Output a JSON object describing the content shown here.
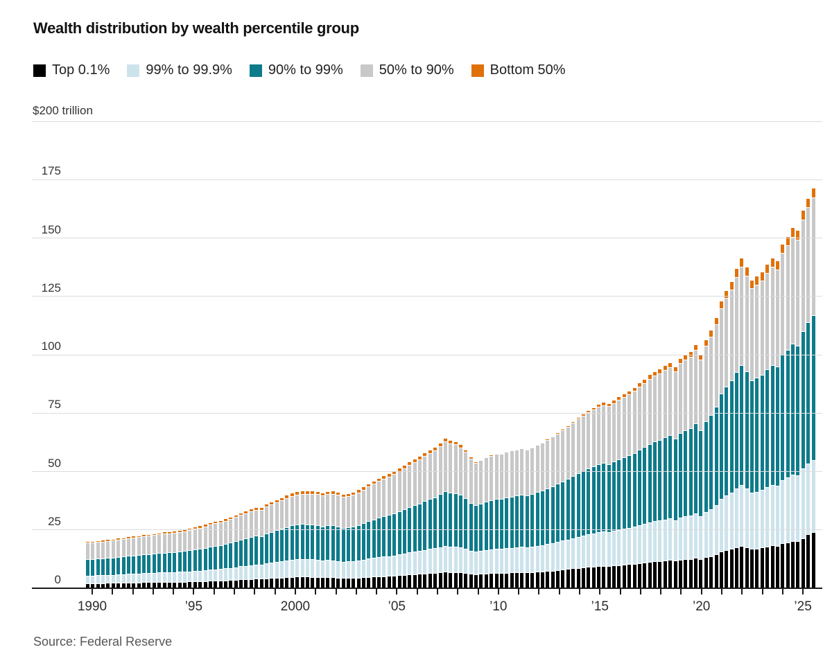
{
  "header": {
    "title": "Wealth distribution by wealth percentile group"
  },
  "legend": {
    "items": [
      {
        "label": "Top 0.1%",
        "color": "#000000"
      },
      {
        "label": "99% to 99.9%",
        "color": "#cde3ec"
      },
      {
        "label": "90% to 99%",
        "color": "#0e7b8b"
      },
      {
        "label": "50% to 90%",
        "color": "#c8c8c8"
      },
      {
        "label": "Bottom 50%",
        "color": "#e07109"
      }
    ]
  },
  "y_axis": {
    "top_label": "$200 trillion",
    "max_value": 200,
    "gridline_values": [
      200,
      175,
      150,
      125,
      100,
      75,
      50,
      25
    ],
    "tick_labels": [
      {
        "value": 175,
        "text": "175"
      },
      {
        "value": 150,
        "text": "150"
      },
      {
        "value": 125,
        "text": "125"
      },
      {
        "value": 100,
        "text": "100"
      },
      {
        "value": 75,
        "text": "75"
      },
      {
        "value": 50,
        "text": "50"
      },
      {
        "value": 25,
        "text": "25"
      },
      {
        "value": 0,
        "text": "0"
      }
    ]
  },
  "x_axis": {
    "tick_year_start": 1990,
    "tick_year_end": 2025,
    "labels": [
      {
        "year": 1990,
        "text": "1990"
      },
      {
        "year": 1995,
        "text": "’95"
      },
      {
        "year": 2000,
        "text": "2000"
      },
      {
        "year": 2005,
        "text": "’05"
      },
      {
        "year": 2010,
        "text": "’10"
      },
      {
        "year": 2015,
        "text": "’15"
      },
      {
        "year": 2020,
        "text": "’20"
      },
      {
        "year": 2025,
        "text": "’25"
      }
    ]
  },
  "source": "Source: Federal Reserve",
  "chart_data": {
    "type": "bar",
    "stacked": true,
    "unit": "$ trillion",
    "frequency": "quarterly",
    "start": "1990Q1",
    "end": "2025Q3",
    "ylim": [
      0,
      200
    ],
    "grid": true,
    "legend_position": "top",
    "series": [
      {
        "name": "Top 0.1%",
        "color": "#000000",
        "values": [
          1.6,
          1.6,
          1.6,
          1.6,
          1.7,
          1.7,
          1.8,
          1.8,
          1.9,
          1.9,
          1.9,
          2.0,
          2.0,
          2.0,
          2.1,
          2.1,
          2.1,
          2.1,
          2.2,
          2.2,
          2.3,
          2.4,
          2.4,
          2.5,
          2.6,
          2.7,
          2.7,
          2.8,
          2.9,
          3.0,
          3.2,
          3.3,
          3.4,
          3.5,
          3.5,
          3.7,
          3.8,
          3.9,
          4.0,
          4.2,
          4.3,
          4.4,
          4.4,
          4.4,
          4.3,
          4.3,
          4.1,
          4.2,
          4.1,
          4.0,
          3.8,
          3.9,
          3.9,
          4.0,
          4.2,
          4.3,
          4.4,
          4.5,
          4.6,
          4.7,
          4.8,
          5.0,
          5.1,
          5.3,
          5.4,
          5.5,
          5.7,
          5.9,
          6.0,
          6.2,
          6.4,
          6.3,
          6.3,
          6.2,
          6.0,
          5.6,
          5.4,
          5.5,
          5.7,
          5.8,
          5.9,
          5.9,
          6.0,
          6.1,
          6.2,
          6.3,
          6.2,
          6.3,
          6.5,
          6.6,
          6.8,
          6.9,
          7.2,
          7.4,
          7.6,
          7.9,
          8.1,
          8.3,
          8.5,
          8.7,
          8.9,
          9.0,
          8.9,
          9.1,
          9.3,
          9.5,
          9.7,
          9.9,
          10.2,
          10.4,
          10.7,
          11.0,
          11.1,
          11.3,
          11.5,
          11.2,
          11.6,
          11.9,
          12.0,
          12.4,
          11.9,
          12.7,
          13.2,
          13.9,
          15.0,
          15.7,
          16.3,
          17.0,
          17.6,
          17.0,
          16.2,
          16.4,
          16.8,
          17.3,
          17.7,
          17.5,
          18.6,
          19.1,
          19.7,
          19.5,
          20.9,
          22.5,
          23.5
        ]
      },
      {
        "name": "99% to 99.9%",
        "color": "#cde3ec",
        "values": [
          3.3,
          3.3,
          3.4,
          3.4,
          3.5,
          3.5,
          3.6,
          3.6,
          3.7,
          3.8,
          3.8,
          3.9,
          3.9,
          4.0,
          4.0,
          4.1,
          4.1,
          4.1,
          4.2,
          4.2,
          4.3,
          4.4,
          4.5,
          4.6,
          4.7,
          4.8,
          4.9,
          5.1,
          5.2,
          5.4,
          5.6,
          5.7,
          5.9,
          6.1,
          6.0,
          6.4,
          6.6,
          6.8,
          7.0,
          7.2,
          7.4,
          7.5,
          7.6,
          7.5,
          7.5,
          7.4,
          7.2,
          7.3,
          7.3,
          7.1,
          6.9,
          7.0,
          7.1,
          7.3,
          7.5,
          7.8,
          8.0,
          8.2,
          8.4,
          8.5,
          8.7,
          8.9,
          9.1,
          9.4,
          9.6,
          9.8,
          10.1,
          10.3,
          10.5,
          10.8,
          11.2,
          10.9,
          11.0,
          10.8,
          10.4,
          9.9,
          9.6,
          9.8,
          10.0,
          10.2,
          10.3,
          10.3,
          10.5,
          10.6,
          10.7,
          10.8,
          10.7,
          10.9,
          11.1,
          11.3,
          11.5,
          11.8,
          12.1,
          12.4,
          12.7,
          13.0,
          13.4,
          13.7,
          14.0,
          14.2,
          14.5,
          14.6,
          14.5,
          14.8,
          15.1,
          15.3,
          15.6,
          15.8,
          16.2,
          16.5,
          16.9,
          17.1,
          17.3,
          17.6,
          17.8,
          17.4,
          18.1,
          18.4,
          18.7,
          19.2,
          18.4,
          19.4,
          20.1,
          21.1,
          22.6,
          23.4,
          24.1,
          25.1,
          25.9,
          25.1,
          24.1,
          24.4,
          24.8,
          25.4,
          25.9,
          25.7,
          27.1,
          27.7,
          28.4,
          28.2,
          29.8,
          30.2,
          30.7
        ]
      },
      {
        "name": "90% to 99%",
        "color": "#0e7b8b",
        "values": [
          7.0,
          7.0,
          7.1,
          7.2,
          7.3,
          7.4,
          7.5,
          7.6,
          7.7,
          7.8,
          7.9,
          8.0,
          8.1,
          8.2,
          8.3,
          8.4,
          8.5,
          8.6,
          8.7,
          8.9,
          9.0,
          9.2,
          9.4,
          9.6,
          9.9,
          10.1,
          10.3,
          10.5,
          10.8,
          11.1,
          11.4,
          11.7,
          12.0,
          12.3,
          12.2,
          12.8,
          13.2,
          13.5,
          13.9,
          14.2,
          14.6,
          14.8,
          14.9,
          14.9,
          14.9,
          14.8,
          14.6,
          14.8,
          14.9,
          14.7,
          14.4,
          14.5,
          14.7,
          15.1,
          15.5,
          16.0,
          16.5,
          16.9,
          17.3,
          17.7,
          18.1,
          18.6,
          19.0,
          19.5,
          20.0,
          20.4,
          20.9,
          21.4,
          21.9,
          22.8,
          23.4,
          23.2,
          22.9,
          22.4,
          21.6,
          20.5,
          19.9,
          20.3,
          20.8,
          21.1,
          21.4,
          21.4,
          21.8,
          22.0,
          22.2,
          22.4,
          22.2,
          22.6,
          23.0,
          23.3,
          23.8,
          24.4,
          24.8,
          25.4,
          26.0,
          26.6,
          27.2,
          27.7,
          28.2,
          28.7,
          29.2,
          29.4,
          29.2,
          29.7,
          30.3,
          30.7,
          31.2,
          31.7,
          32.4,
          32.9,
          33.6,
          34.1,
          34.6,
          35.1,
          35.6,
          34.8,
          36.3,
          36.9,
          37.4,
          38.5,
          36.9,
          38.9,
          40.3,
          42.3,
          45.1,
          46.7,
          48.1,
          50.0,
          51.6,
          50.3,
          48.2,
          48.8,
          49.3,
          50.5,
          51.5,
          51.1,
          53.6,
          54.8,
          56.1,
          55.7,
          58.9,
          60.8,
          62.2
        ]
      },
      {
        "name": "50% to 90%",
        "color": "#c8c8c8",
        "values": [
          7.0,
          7.1,
          7.1,
          7.2,
          7.2,
          7.3,
          7.4,
          7.4,
          7.5,
          7.6,
          7.7,
          7.8,
          7.9,
          8.0,
          8.1,
          8.2,
          8.3,
          8.4,
          8.5,
          8.6,
          8.7,
          8.9,
          9.0,
          9.2,
          9.4,
          9.6,
          9.7,
          9.9,
          10.1,
          10.4,
          10.6,
          10.8,
          11.0,
          11.2,
          11.2,
          11.5,
          11.8,
          12.0,
          12.2,
          12.5,
          12.7,
          12.9,
          13.0,
          13.1,
          13.2,
          13.3,
          13.3,
          13.5,
          13.6,
          13.6,
          13.6,
          13.6,
          13.7,
          14.1,
          14.5,
          14.9,
          15.3,
          15.7,
          16.1,
          16.4,
          16.8,
          17.2,
          17.6,
          18.0,
          18.5,
          18.9,
          19.3,
          19.7,
          20.1,
          20.5,
          21.2,
          21.0,
          20.8,
          20.4,
          19.8,
          18.9,
          18.3,
          18.6,
          18.9,
          19.1,
          19.3,
          19.3,
          19.6,
          19.7,
          19.8,
          19.9,
          19.8,
          20.0,
          20.3,
          20.5,
          20.9,
          21.3,
          21.6,
          22.0,
          22.4,
          22.9,
          23.3,
          23.7,
          24.0,
          24.4,
          24.7,
          24.9,
          24.8,
          25.1,
          25.4,
          25.7,
          26.1,
          26.5,
          27.0,
          27.4,
          27.9,
          28.2,
          28.5,
          28.9,
          29.2,
          28.8,
          29.8,
          30.0,
          30.5,
          31.4,
          30.1,
          32.3,
          33.6,
          35.2,
          36.6,
          37.9,
          38.9,
          40.5,
          41.9,
          40.9,
          39.4,
          39.9,
          40.3,
          41.2,
          42.0,
          41.7,
          43.6,
          44.6,
          45.6,
          45.3,
          47.7,
          49.0,
          50.3
        ]
      },
      {
        "name": "Bottom 50%",
        "color": "#e07109",
        "values": [
          0.7,
          0.7,
          0.7,
          0.7,
          0.7,
          0.7,
          0.8,
          0.8,
          0.8,
          0.8,
          0.8,
          0.8,
          0.8,
          0.8,
          0.8,
          0.9,
          0.9,
          0.9,
          0.9,
          0.9,
          0.9,
          0.9,
          1.0,
          1.0,
          1.0,
          1.0,
          1.0,
          1.0,
          1.0,
          1.1,
          1.1,
          1.1,
          1.1,
          1.1,
          1.1,
          1.2,
          1.2,
          1.2,
          1.3,
          1.3,
          1.3,
          1.3,
          1.3,
          1.3,
          1.3,
          1.3,
          1.3,
          1.3,
          1.3,
          1.3,
          1.2,
          1.2,
          1.2,
          1.3,
          1.3,
          1.3,
          1.3,
          1.4,
          1.4,
          1.4,
          1.4,
          1.4,
          1.5,
          1.5,
          1.5,
          1.5,
          1.5,
          1.5,
          1.5,
          1.5,
          1.5,
          1.4,
          1.4,
          1.3,
          1.1,
          0.9,
          0.6,
          0.5,
          0.5,
          0.4,
          0.3,
          0.3,
          0.3,
          0.3,
          0.3,
          0.3,
          0.3,
          0.3,
          0.3,
          0.3,
          0.4,
          0.4,
          0.4,
          0.5,
          0.5,
          0.6,
          0.7,
          0.8,
          0.9,
          1.0,
          1.2,
          1.3,
          1.3,
          1.3,
          1.4,
          1.5,
          1.5,
          1.6,
          1.7,
          1.8,
          1.9,
          1.9,
          2.0,
          2.1,
          2.1,
          2.1,
          2.2,
          2.3,
          2.3,
          2.4,
          2.2,
          2.6,
          2.8,
          3.0,
          3.2,
          3.4,
          3.6,
          3.8,
          3.9,
          3.8,
          3.6,
          3.7,
          3.7,
          3.8,
          3.9,
          3.8,
          3.9,
          4.0,
          4.1,
          4.0,
          4.1,
          4.1,
          4.2
        ]
      }
    ]
  }
}
